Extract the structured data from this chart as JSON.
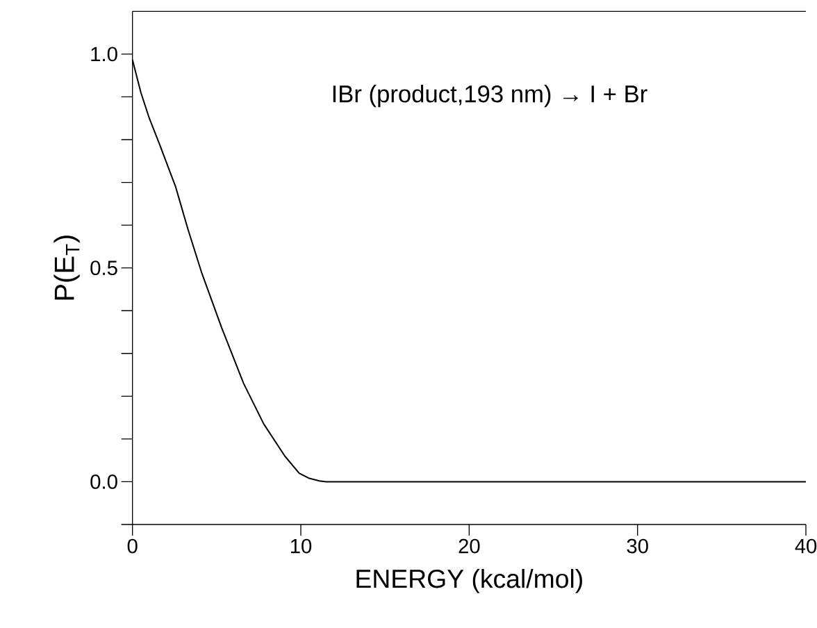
{
  "chart_data": {
    "type": "line",
    "xlabel": "ENERGY (kcal/mol)",
    "ylabel": "P(E$_{T}$)",
    "annotations": [
      "IBr (product,193 nm) → I + Br"
    ],
    "x": [
      0,
      0.5,
      1,
      1.6,
      2.56,
      3.3,
      4.1,
      5.3,
      6.6,
      7.8,
      9.05,
      9.9,
      10.5,
      11.1,
      11.5,
      15,
      20,
      30,
      40
    ],
    "series": [
      {
        "color": "#000000",
        "values": [
          0.987,
          0.91,
          0.85,
          0.79,
          0.69,
          0.59,
          0.49,
          0.36,
          0.23,
          0.135,
          0.06,
          0.02,
          0.008,
          0.002,
          0,
          0,
          0,
          0,
          0
        ]
      }
    ],
    "xlim": [
      0,
      40
    ],
    "ylim": [
      -0.1,
      1.1
    ],
    "xticks": [
      0,
      10,
      20,
      30,
      40
    ],
    "yticks": [
      {
        "value": -0.1,
        "label": null
      },
      {
        "value": 0.0,
        "label": "0.0"
      },
      {
        "value": 0.1,
        "label": null
      },
      {
        "value": 0.2,
        "label": null
      },
      {
        "value": 0.3,
        "label": null
      },
      {
        "value": 0.4,
        "label": null
      },
      {
        "value": 0.5,
        "label": "0.5"
      },
      {
        "value": 0.6,
        "label": null
      },
      {
        "value": 0.7,
        "label": null
      },
      {
        "value": 0.8,
        "label": null
      },
      {
        "value": 0.9,
        "label": null
      },
      {
        "value": 1.0,
        "label": "1.0"
      }
    ],
    "grid": false,
    "marker": "none",
    "line_style": "solid"
  }
}
